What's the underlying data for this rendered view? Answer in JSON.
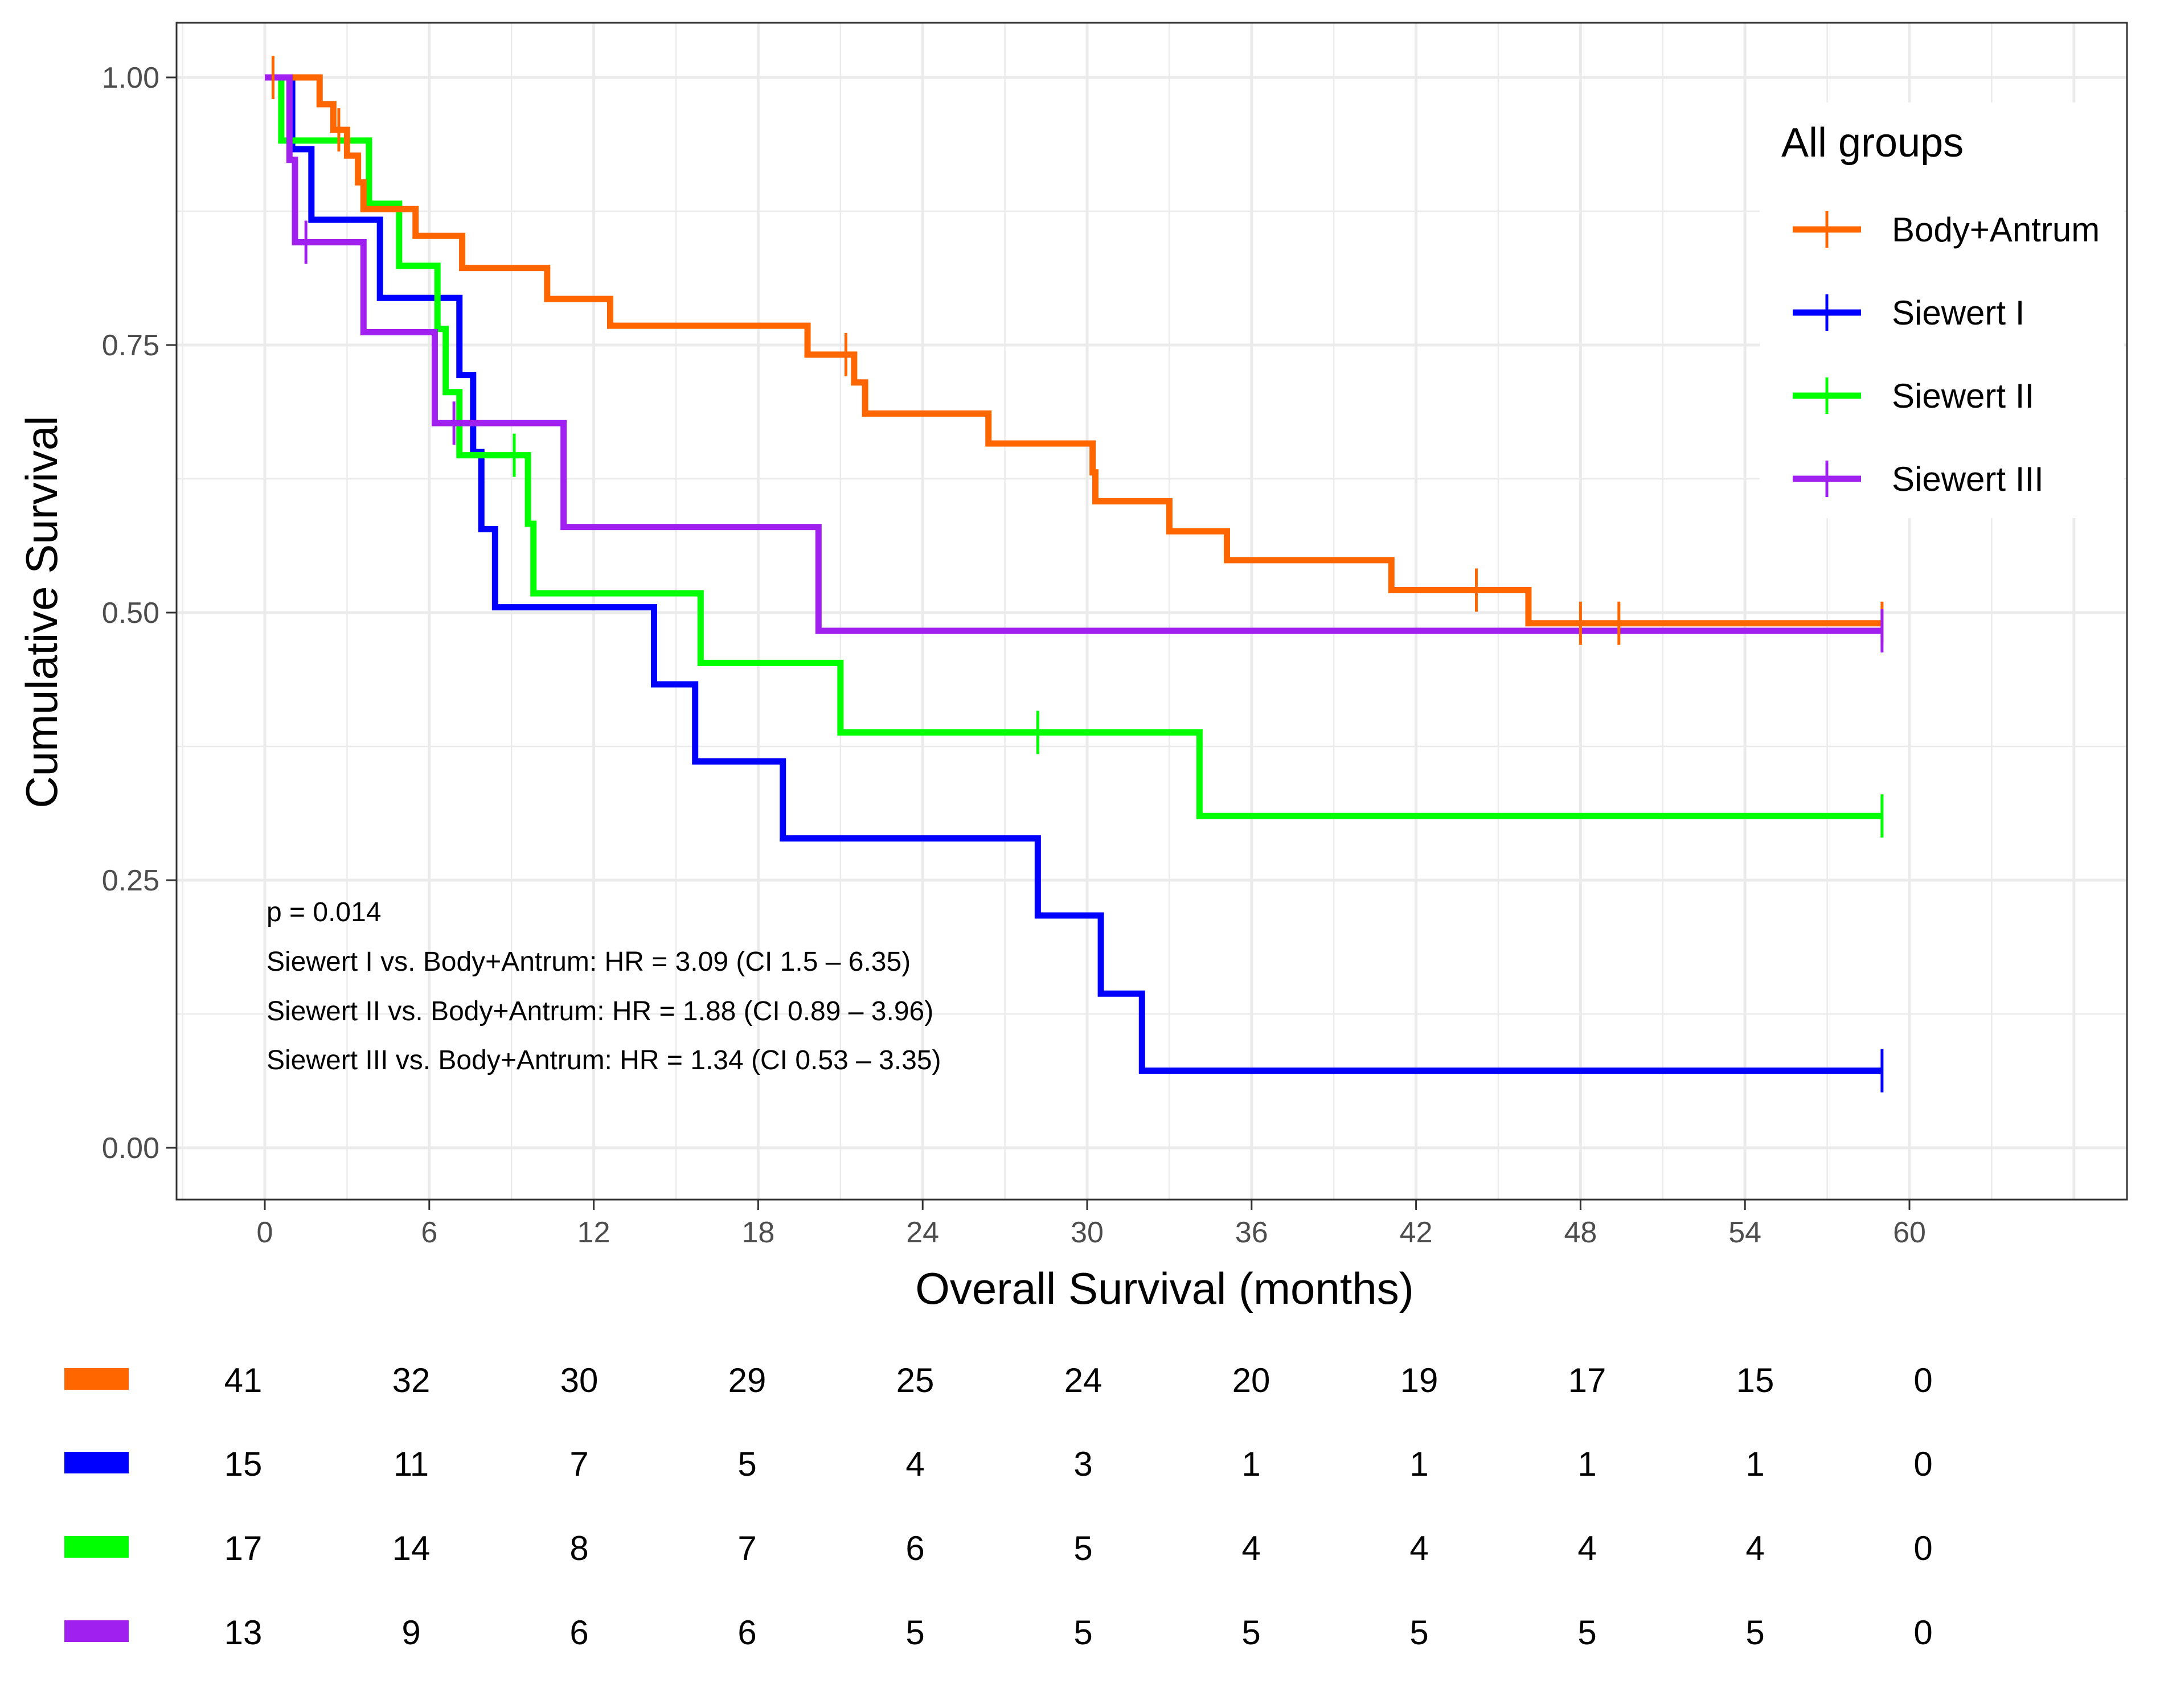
{
  "chart_data": {
    "type": "line",
    "subtype": "kaplan-meier",
    "xlabel": "Overall Survival (months)",
    "ylabel": "Cumulative Survival",
    "xlim": [
      0,
      60
    ],
    "ylim": [
      0,
      1
    ],
    "x_ticks": [
      "0",
      "6",
      "12",
      "18",
      "24",
      "30",
      "36",
      "42",
      "48",
      "54",
      "60"
    ],
    "y_ticks": [
      "0.00",
      "0.25",
      "0.50",
      "0.75",
      "1.00"
    ],
    "grid": true,
    "legend": {
      "title": "All groups",
      "position": "top-right"
    },
    "annotations": [
      "p = 0.014",
      "Siewert I vs. Body+Antrum: HR = 3.09 (CI 1.5 – 6.35)",
      "Siewert II vs. Body+Antrum: HR = 1.88 (CI 0.89 – 3.96)",
      "Siewert III vs. Body+Antrum: HR = 1.34 (CI 0.53 – 3.35)"
    ],
    "series": [
      {
        "name": "Body+Antrum",
        "color": "#FF6600",
        "steps": [
          [
            0,
            1.0
          ],
          [
            2,
            0.975
          ],
          [
            2.5,
            0.951
          ],
          [
            3,
            0.927
          ],
          [
            3.4,
            0.902
          ],
          [
            3.6,
            0.877
          ],
          [
            5.5,
            0.852
          ],
          [
            7.2,
            0.822
          ],
          [
            10.3,
            0.793
          ],
          [
            12.6,
            0.768
          ],
          [
            19.8,
            0.741
          ],
          [
            21.5,
            0.715
          ],
          [
            21.9,
            0.686
          ],
          [
            26.4,
            0.658
          ],
          [
            30.2,
            0.631
          ],
          [
            30.3,
            0.604
          ],
          [
            33,
            0.576
          ],
          [
            35.1,
            0.549
          ],
          [
            41.1,
            0.521
          ],
          [
            46.1,
            0.49
          ],
          [
            59,
            0.49
          ]
        ],
        "censors": [
          [
            0.3,
            1.0
          ],
          [
            2.7,
            0.951
          ],
          [
            21.2,
            0.741
          ],
          [
            44.2,
            0.521
          ],
          [
            48,
            0.49
          ],
          [
            49.4,
            0.49
          ],
          [
            59,
            0.49
          ]
        ]
      },
      {
        "name": "Siewert I",
        "color": "#0000FF",
        "steps": [
          [
            0,
            1.0
          ],
          [
            1,
            0.933
          ],
          [
            1.7,
            0.867
          ],
          [
            4.2,
            0.794
          ],
          [
            7.1,
            0.722
          ],
          [
            7.6,
            0.65
          ],
          [
            7.9,
            0.578
          ],
          [
            8.4,
            0.505
          ],
          [
            14.2,
            0.433
          ],
          [
            15.7,
            0.361
          ],
          [
            18.9,
            0.289
          ],
          [
            28.2,
            0.217
          ],
          [
            30.5,
            0.144
          ],
          [
            32,
            0.072
          ],
          [
            59,
            0.072
          ]
        ],
        "censors": [
          [
            59,
            0.072
          ]
        ]
      },
      {
        "name": "Siewert II",
        "color": "#00FF00",
        "steps": [
          [
            0,
            1.0
          ],
          [
            0.6,
            0.941
          ],
          [
            3.8,
            0.882
          ],
          [
            4.9,
            0.824
          ],
          [
            6.3,
            0.765
          ],
          [
            6.6,
            0.706
          ],
          [
            7.1,
            0.647
          ],
          [
            9.6,
            0.583
          ],
          [
            9.8,
            0.518
          ],
          [
            15.9,
            0.453
          ],
          [
            21,
            0.388
          ],
          [
            34.1,
            0.31
          ],
          [
            59,
            0.31
          ]
        ],
        "censors": [
          [
            9.1,
            0.647
          ],
          [
            28.2,
            0.388
          ],
          [
            59,
            0.31
          ]
        ]
      },
      {
        "name": "Siewert III",
        "color": "#A020F0",
        "steps": [
          [
            0,
            1.0
          ],
          [
            0.9,
            0.923
          ],
          [
            1.1,
            0.846
          ],
          [
            3.6,
            0.762
          ],
          [
            6.2,
            0.677
          ],
          [
            10.9,
            0.58
          ],
          [
            20.2,
            0.483
          ],
          [
            59,
            0.483
          ]
        ],
        "censors": [
          [
            1.5,
            0.846
          ],
          [
            6.9,
            0.677
          ],
          [
            59,
            0.483
          ]
        ]
      }
    ],
    "risk_table": {
      "times": [
        0,
        6,
        12,
        18,
        24,
        30,
        36,
        42,
        48,
        54,
        60
      ],
      "rows": [
        {
          "name": "Body+Antrum",
          "color": "#FF6600",
          "values": [
            "41",
            "32",
            "30",
            "29",
            "25",
            "24",
            "20",
            "19",
            "17",
            "15",
            "0"
          ]
        },
        {
          "name": "Siewert I",
          "color": "#0000FF",
          "values": [
            "15",
            "11",
            "7",
            "5",
            "4",
            "3",
            "1",
            "1",
            "1",
            "1",
            "0"
          ]
        },
        {
          "name": "Siewert II",
          "color": "#00FF00",
          "values": [
            "17",
            "14",
            "8",
            "7",
            "6",
            "5",
            "4",
            "4",
            "4",
            "4",
            "0"
          ]
        },
        {
          "name": "Siewert III",
          "color": "#A020F0",
          "values": [
            "13",
            "9",
            "6",
            "6",
            "5",
            "5",
            "5",
            "5",
            "5",
            "5",
            "0"
          ]
        }
      ]
    }
  }
}
